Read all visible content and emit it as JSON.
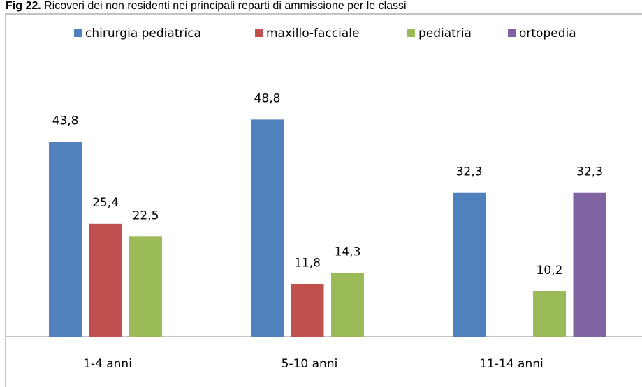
{
  "chart_data": {
    "type": "bar",
    "title_prefix": "Fig 22.",
    "title": "Ricoveri dei non residenti nei principali reparti di ammissione per le classi",
    "categories": [
      "1-4 anni",
      "5-10 anni",
      "11-14 anni"
    ],
    "series": [
      {
        "name": "chirurgia pediatrica",
        "color": "#4f81bd",
        "values": [
          43.8,
          48.8,
          32.3
        ],
        "value_labels": [
          "43,8",
          "48,8",
          "32,3"
        ]
      },
      {
        "name": "maxillo-facciale",
        "color": "#c0504d",
        "values": [
          25.4,
          11.8,
          null
        ],
        "value_labels": [
          "25,4",
          "11,8",
          null
        ]
      },
      {
        "name": "pediatria",
        "color": "#9bbb59",
        "values": [
          22.5,
          14.3,
          10.2
        ],
        "value_labels": [
          "22,5",
          "14,3",
          "10,2"
        ]
      },
      {
        "name": "ortopedia",
        "color": "#8064a2",
        "values": [
          null,
          null,
          32.3
        ],
        "value_labels": [
          null,
          null,
          "32,3"
        ]
      }
    ],
    "ylim": [
      0,
      70
    ],
    "legend": "top"
  }
}
